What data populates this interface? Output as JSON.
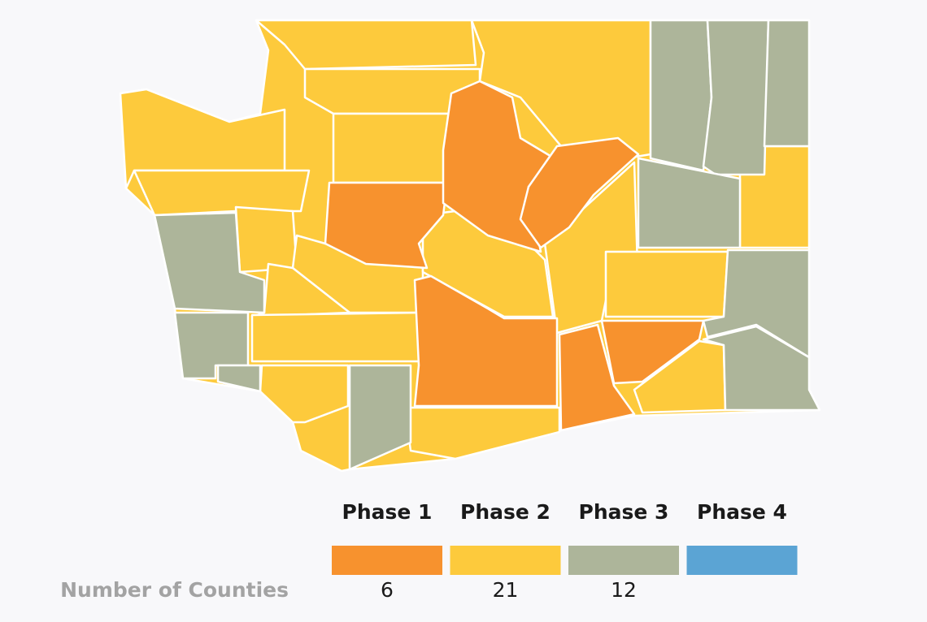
{
  "legend": {
    "label": "Number of Counties",
    "phases": [
      {
        "name": "Phase 1",
        "color": "#f7922e",
        "count": 6
      },
      {
        "name": "Phase 2",
        "color": "#fdca3c",
        "count": 21
      },
      {
        "name": "Phase 3",
        "color": "#adb59a",
        "count": 12
      },
      {
        "name": "Phase 4",
        "color": "#5ba4d4"
      }
    ]
  }
}
